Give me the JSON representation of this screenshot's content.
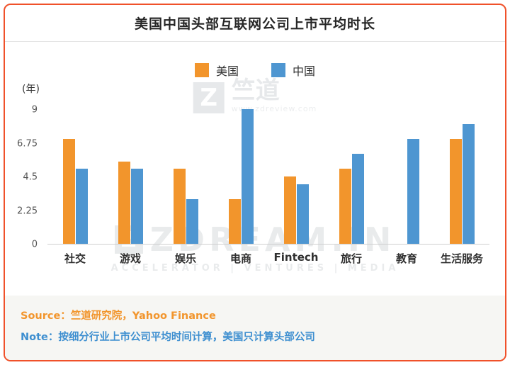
{
  "title": "美国中国头部互联网公司上市平均时长",
  "ylabel": "(年)",
  "chart_data": {
    "type": "bar",
    "categories": [
      "社交",
      "游戏",
      "娱乐",
      "电商",
      "Fintech",
      "旅行",
      "教育",
      "生活服务"
    ],
    "series": [
      {
        "name": "美国",
        "color": "#f2952c",
        "values": [
          7.0,
          5.5,
          5.0,
          3.0,
          4.5,
          5.0,
          null,
          7.0
        ]
      },
      {
        "name": "中国",
        "color": "#4e96d1",
        "values": [
          5.0,
          5.0,
          3.0,
          9.0,
          4.0,
          6.0,
          7.0,
          8.0
        ]
      }
    ],
    "yticks": [
      "0",
      "2.25",
      "4.5",
      "6.75",
      "9"
    ],
    "ytick_values": [
      0,
      2.25,
      4.5,
      6.75,
      9
    ],
    "ylim": [
      0,
      9
    ],
    "legend_position": "top-center",
    "grid": false
  },
  "legend": [
    {
      "label": "美国",
      "color": "#f2952c"
    },
    {
      "label": "中国",
      "color": "#4e96d1"
    }
  ],
  "watermark": {
    "center": {
      "logo_letter": "Z",
      "brand": "竺道",
      "url": "www.zdreview.com"
    },
    "bottom": {
      "logo_letter": "Z",
      "text": "ZDREAM.IN",
      "tagline": "ACCELERATOR | VENTURES | MEDIA"
    }
  },
  "footer": {
    "source_label": "Source：",
    "source_text": "竺道研究院，Yahoo Finance",
    "note_label": "Note：",
    "note_text": "按细分行业上市公司平均时间计算，美国只计算头部公司"
  },
  "colors": {
    "border": "#f0512a",
    "us_bar": "#f2952c",
    "cn_bar": "#4e96d1",
    "source_text": "#f2952c",
    "note_text": "#3e8fd0"
  }
}
